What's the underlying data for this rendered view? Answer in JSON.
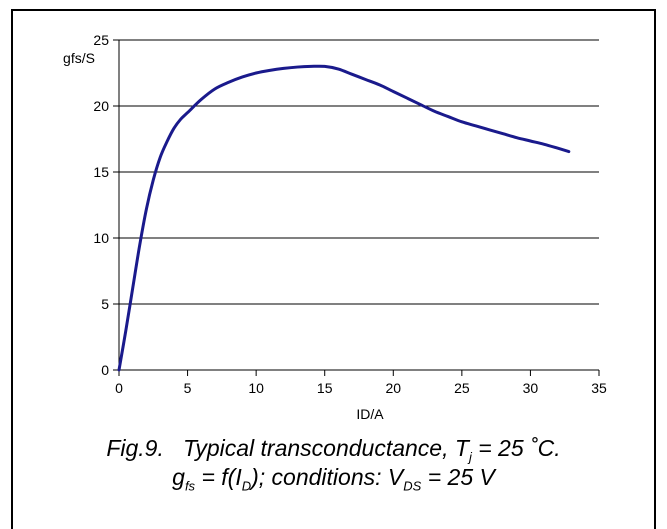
{
  "chart_data": {
    "type": "line",
    "xlabel": "ID/A",
    "ylabel": "gfs/S",
    "xlim": [
      0,
      35
    ],
    "ylim": [
      0,
      25
    ],
    "x_ticks": [
      0,
      5,
      10,
      15,
      20,
      25,
      30,
      35
    ],
    "y_ticks": [
      0,
      5,
      10,
      15,
      20,
      25
    ],
    "grid": "horizontal",
    "series": [
      {
        "color": "#1a1a8c",
        "x": [
          0,
          0.5,
          1,
          1.5,
          2,
          2.5,
          3,
          3.5,
          4,
          4.5,
          5,
          6,
          7,
          8,
          9,
          10,
          11,
          12,
          13,
          14,
          15,
          16,
          17,
          18,
          19,
          20,
          21,
          22,
          23,
          24,
          25,
          26,
          27,
          28,
          29,
          30,
          31,
          32,
          32.8
        ],
        "y": [
          0,
          3,
          6.2,
          9.4,
          12.2,
          14.4,
          16.1,
          17.3,
          18.3,
          19.0,
          19.5,
          20.5,
          21.3,
          21.8,
          22.2,
          22.5,
          22.7,
          22.85,
          22.95,
          23.0,
          23.0,
          22.8,
          22.4,
          22.0,
          21.6,
          21.1,
          20.6,
          20.1,
          19.6,
          19.2,
          18.8,
          18.5,
          18.2,
          17.9,
          17.6,
          17.35,
          17.1,
          16.8,
          16.55
        ]
      }
    ]
  },
  "caption": {
    "line1_main": "Fig.9.   Typical transconductance, T",
    "line1_sub": "j",
    "line1_tail": " = 25 ˚C.",
    "line2_a": "g",
    "line2_sub1": "fs",
    "line2_b": " = f(I",
    "line2_sub2": "D",
    "line2_c": "); conditions: V",
    "line2_sub3": "DS",
    "line2_d": " = 25 V"
  }
}
